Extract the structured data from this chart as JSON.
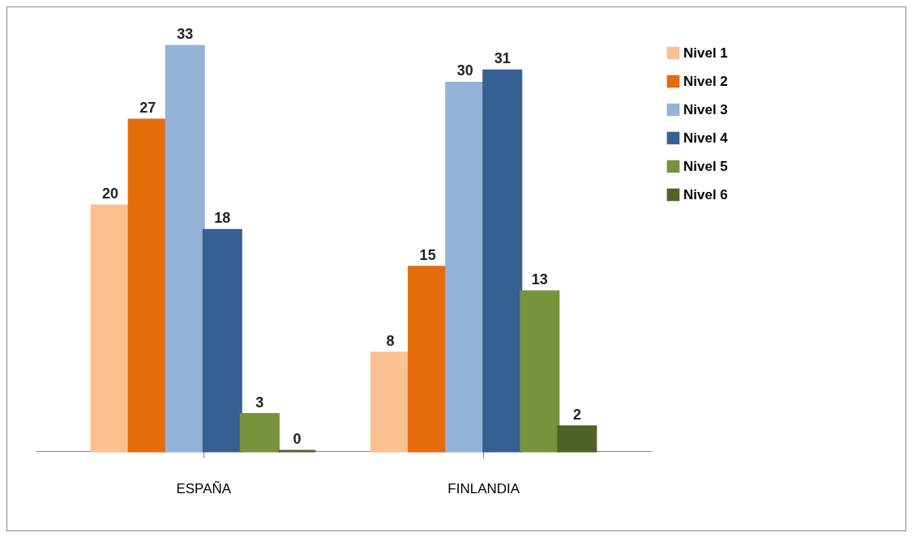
{
  "chart_data": {
    "type": "bar",
    "categories": [
      "ESPAÑA",
      "FINLANDIA"
    ],
    "series": [
      {
        "name": "Nivel 1",
        "color": "#fac090",
        "values": [
          20,
          8
        ]
      },
      {
        "name": "Nivel 2",
        "color": "#e46c0a",
        "values": [
          27,
          15
        ]
      },
      {
        "name": "Nivel 3",
        "color": "#95b3d7",
        "values": [
          33,
          30
        ]
      },
      {
        "name": "Nivel 4",
        "color": "#376092",
        "values": [
          18,
          31
        ]
      },
      {
        "name": "Nivel 5",
        "color": "#77933c",
        "values": [
          3,
          13
        ]
      },
      {
        "name": "Nivel 6",
        "color": "#4f6228",
        "values": [
          0,
          2
        ]
      }
    ],
    "data_labels": true,
    "legend": "right",
    "grid": false
  }
}
